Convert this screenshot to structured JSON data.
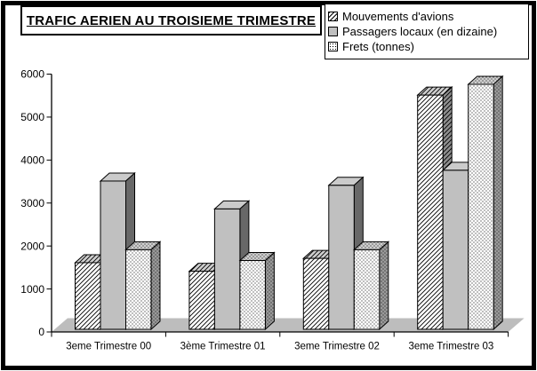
{
  "window": {
    "background": "#ffffff",
    "frame_border_color": "#000000"
  },
  "chart_data": {
    "type": "bar",
    "style": "3d-column",
    "title": "TRAFIC AERIEN AU TROISIEME TRIMESTRE",
    "categories": [
      "3eme Trimestre 00",
      "3ème Trimestre 01",
      "3eme Trimestre 02",
      "3eme Trimestre 03"
    ],
    "series": [
      {
        "name": "Mouvements d'avions",
        "pattern": "hatch",
        "values": [
          1550,
          1350,
          1650,
          5450
        ]
      },
      {
        "name": "Passagers locaux (en dizaine)",
        "pattern": "solid-gray",
        "values": [
          3450,
          2800,
          3350,
          3700
        ]
      },
      {
        "name": "Frets (tonnes)",
        "pattern": "dots",
        "values": [
          1850,
          1600,
          1850,
          5700
        ]
      }
    ],
    "ylim": [
      0,
      6000
    ],
    "ytick_step": 1000,
    "yticks": [
      0,
      1000,
      2000,
      3000,
      4000,
      5000,
      6000
    ],
    "xlabel": "",
    "ylabel": "",
    "grid": false,
    "legend_position": "top-right",
    "colors": {
      "bar_gray_front": "#c0c0c0",
      "bar_gray_top": "#cbcbcb",
      "bar_gray_side": "#686868",
      "floor": "#bdbdbd",
      "outline": "#000000"
    }
  }
}
